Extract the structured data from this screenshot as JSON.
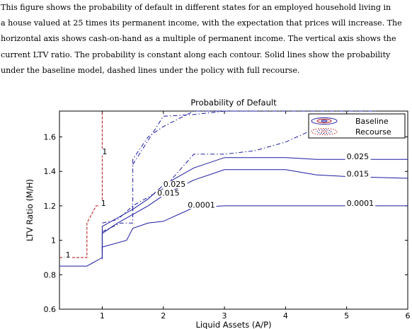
{
  "caption_lines": [
    "This figure shows the probability of default in different states for an employed household living in",
    "a house valued at 25 times its permanent income, with the expectation that prices will increase. The",
    "horizontal axis shows cash-on-hand as a multiple of permanent income. The vertical axis shows the",
    "current LTV ratio.  The probability is constant along each contour. Solid lines show the probability",
    "under the baseline model, dashed lines under the policy with full recourse."
  ],
  "chart_data": {
    "type": "line",
    "title": "Probability of Default",
    "xlabel": "Liquid Assets (A/P)",
    "ylabel": "LTV Ratio (M/H)",
    "xlim": [
      0.3,
      6
    ],
    "ylim": [
      0.6,
      1.75
    ],
    "xticks": [
      "1",
      "2",
      "3",
      "4",
      "5",
      "6"
    ],
    "yticks": [
      "0.6",
      "0.8",
      "1",
      "1.2",
      "1.4",
      "1.6"
    ],
    "grid": false,
    "legend_position": "top-right",
    "legend": [
      "Baseline",
      "Recourse"
    ],
    "colors": {
      "baseline": "#1a1aa0",
      "recourse": "#b01010",
      "dashdot": "#1a1aa0"
    },
    "series": [
      {
        "label": "0.0001",
        "style": "solid",
        "color": "#1a1aa0",
        "x": [
          1.0,
          1.0,
          1.4,
          1.5,
          1.75,
          2.0,
          2.5,
          3.0,
          3.5,
          4.0,
          4.5,
          5.0,
          5.5,
          6.0
        ],
        "y": [
          0.89,
          0.96,
          1.0,
          1.07,
          1.1,
          1.11,
          1.19,
          1.2,
          1.2,
          1.2,
          1.2,
          1.2,
          1.2,
          1.2
        ]
      },
      {
        "label": "0.015",
        "style": "solid",
        "color": "#1a1aa0",
        "x": [
          1.0,
          1.0,
          1.25,
          1.5,
          1.75,
          2.0,
          2.5,
          3.0,
          3.5,
          4.0,
          4.5,
          5.0,
          5.5,
          6.0
        ],
        "y": [
          0.92,
          1.04,
          1.1,
          1.15,
          1.2,
          1.26,
          1.35,
          1.41,
          1.41,
          1.41,
          1.38,
          1.37,
          1.365,
          1.36
        ]
      },
      {
        "label": "0.025",
        "style": "solid",
        "color": "#1a1aa0",
        "x": [
          1.0,
          1.0,
          1.25,
          1.5,
          1.75,
          2.0,
          2.5,
          3.0,
          3.5,
          4.0,
          4.5,
          5.0,
          5.5,
          6.0
        ],
        "y": [
          0.93,
          1.08,
          1.13,
          1.18,
          1.24,
          1.32,
          1.42,
          1.48,
          1.48,
          1.48,
          1.47,
          1.47,
          1.47,
          1.47
        ]
      },
      {
        "label": "1",
        "style": "solid",
        "color": "#1a1aa0",
        "x": [
          0.3,
          0.75,
          1.0,
          1.0
        ],
        "y": [
          0.85,
          0.85,
          0.9,
          0.92
        ]
      },
      {
        "label": "",
        "style": "dash",
        "color": "#b01010",
        "x": [
          0.3,
          0.75,
          0.75,
          0.9,
          1.0,
          1.0,
          1.0
        ],
        "y": [
          0.9,
          0.9,
          1.1,
          1.2,
          1.2,
          1.4,
          1.75
        ]
      },
      {
        "label": "",
        "style": "dashdot",
        "color": "#1a1aa0",
        "x": [
          1.5,
          1.5,
          1.75,
          2.0,
          2.5,
          3.5,
          4.0,
          4.5,
          5.0,
          5.5
        ],
        "y": [
          1.17,
          1.47,
          1.6,
          1.66,
          1.75,
          1.75,
          1.75,
          1.75,
          1.75,
          1.75
        ]
      },
      {
        "label": "",
        "style": "dashdot",
        "color": "#1a1aa0",
        "x": [
          1.5,
          1.75,
          2.0,
          2.5,
          3.0,
          3.5
        ],
        "y": [
          1.44,
          1.58,
          1.72,
          1.73,
          1.75,
          1.75
        ]
      },
      {
        "label": "",
        "style": "dashdot",
        "color": "#1a1aa0",
        "x": [
          1.0,
          1.25,
          1.5,
          2.0,
          2.5,
          3.0,
          3.5,
          4.0,
          4.5,
          5.0
        ],
        "y": [
          1.1,
          1.12,
          1.2,
          1.3,
          1.5,
          1.5,
          1.52,
          1.57,
          1.65,
          1.73
        ]
      },
      {
        "label": "",
        "style": "dashdot",
        "color": "#1a1aa0",
        "x": [
          1.0,
          1.3,
          1.5,
          1.5
        ],
        "y": [
          1.05,
          1.1,
          1.1,
          1.2
        ]
      }
    ],
    "contour_labels": [
      {
        "text": "1",
        "x": 0.4,
        "y": 0.9
      },
      {
        "text": "1",
        "x": 1.0,
        "y": 1.5
      },
      {
        "text": "1",
        "x": 0.98,
        "y": 1.2
      },
      {
        "text": "0.025",
        "x": 2.0,
        "y": 1.31
      },
      {
        "text": "0.015",
        "x": 1.9,
        "y": 1.26
      },
      {
        "text": "0.0001",
        "x": 2.4,
        "y": 1.19
      },
      {
        "text": "0.025",
        "x": 5.0,
        "y": 1.47
      },
      {
        "text": "0.015",
        "x": 5.0,
        "y": 1.37
      },
      {
        "text": "0.0001",
        "x": 5.0,
        "y": 1.2
      }
    ]
  }
}
